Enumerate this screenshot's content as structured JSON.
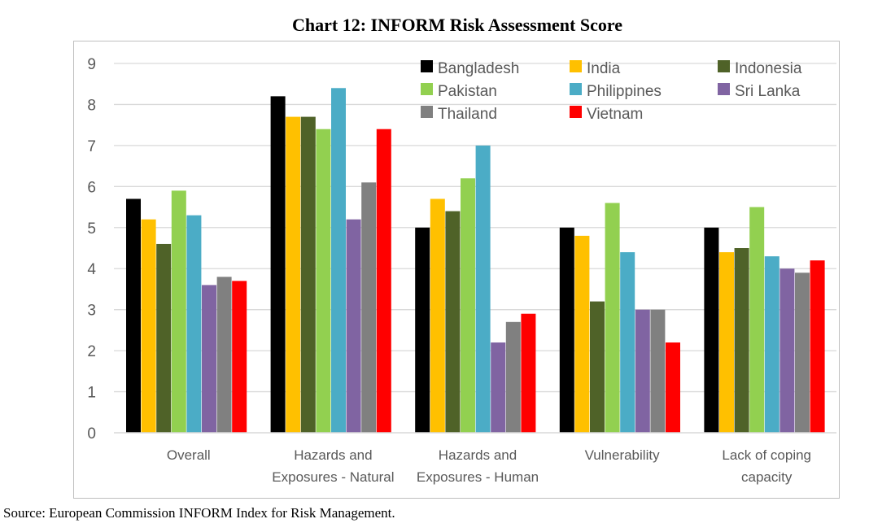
{
  "chart_data": {
    "type": "bar",
    "title": "Chart 12: INFORM Risk Assessment Score",
    "xlabel": "",
    "ylabel": "",
    "ylim": [
      0,
      9
    ],
    "yticks": [
      "0",
      "1",
      "2",
      "3",
      "4",
      "5",
      "6",
      "7",
      "8",
      "9"
    ],
    "grid": true,
    "legend_position": "top-right",
    "categories": [
      [
        "Overall"
      ],
      [
        "Hazards and",
        "Exposures - Natural"
      ],
      [
        "Hazards and",
        "Exposures - Human"
      ],
      [
        "Vulnerability"
      ],
      [
        "Lack of coping",
        "capacity"
      ]
    ],
    "series": [
      {
        "name": "Bangladesh",
        "color": "#000000",
        "values": [
          5.7,
          8.2,
          5.0,
          5.0,
          5.0
        ]
      },
      {
        "name": "India",
        "color": "#FFC000",
        "values": [
          5.2,
          7.7,
          5.7,
          4.8,
          4.4
        ]
      },
      {
        "name": "Indonesia",
        "color": "#4F6228",
        "values": [
          4.6,
          7.7,
          5.4,
          3.2,
          4.5
        ]
      },
      {
        "name": "Pakistan",
        "color": "#92D050",
        "values": [
          5.9,
          7.4,
          6.2,
          5.6,
          5.5
        ]
      },
      {
        "name": "Philippines",
        "color": "#4BACC6",
        "values": [
          5.3,
          8.4,
          7.0,
          4.4,
          4.3
        ]
      },
      {
        "name": "Sri Lanka",
        "color": "#8064A2",
        "values": [
          3.6,
          5.2,
          2.2,
          3.0,
          4.0
        ]
      },
      {
        "name": "Thailand",
        "color": "#808080",
        "values": [
          3.8,
          6.1,
          2.7,
          3.0,
          3.9
        ]
      },
      {
        "name": "Vietnam",
        "color": "#FF0000",
        "values": [
          3.7,
          7.4,
          2.9,
          2.2,
          4.2
        ]
      }
    ]
  },
  "source": "Source: European Commission INFORM Index for Risk Management."
}
